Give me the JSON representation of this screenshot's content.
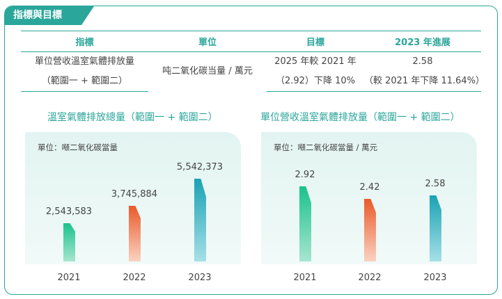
{
  "section_tab": "指標與目標",
  "table": {
    "headers": [
      "指標",
      "單位",
      "目標",
      "2023 年進展"
    ],
    "indicator_line1": "單位營收溫室氣體排放量",
    "indicator_line2": "（範圍一 + 範圍二）",
    "unit": "吨二氧化碳当量 / 萬元",
    "target_line1": "2025 年較 2021 年",
    "target_line2": "（2.92）下降 10%",
    "progress_line1": "2.58",
    "progress_line2": "（較 2021 年下降 11.64%）"
  },
  "chart_data": [
    {
      "type": "bar",
      "title": "溫室氣體排放總量（範圍一 + 範圍二）",
      "unit_label": "單位：噸二氧化碳當量",
      "categories": [
        "2021",
        "2022",
        "2023"
      ],
      "values": [
        2543583,
        3745884,
        5542373
      ],
      "value_labels": [
        "2,543,583",
        "3,745,884",
        "5,542,373"
      ],
      "colors": [
        "#1bc28c",
        "#ea5a2a",
        "#1aa2b4"
      ]
    },
    {
      "type": "bar",
      "title": "單位營收溫室氣體排放量（範圍一 + 範圍二）",
      "unit_label": "單位：噸二氧化碳當量 / 萬元",
      "categories": [
        "2021",
        "2022",
        "2023"
      ],
      "values": [
        2.92,
        2.42,
        2.58
      ],
      "value_labels": [
        "2.92",
        "2.42",
        "2.58"
      ],
      "colors": [
        "#1bc28c",
        "#ea5a2a",
        "#1aa2b4"
      ]
    }
  ],
  "colors": {
    "accent": "#2aa69a"
  }
}
